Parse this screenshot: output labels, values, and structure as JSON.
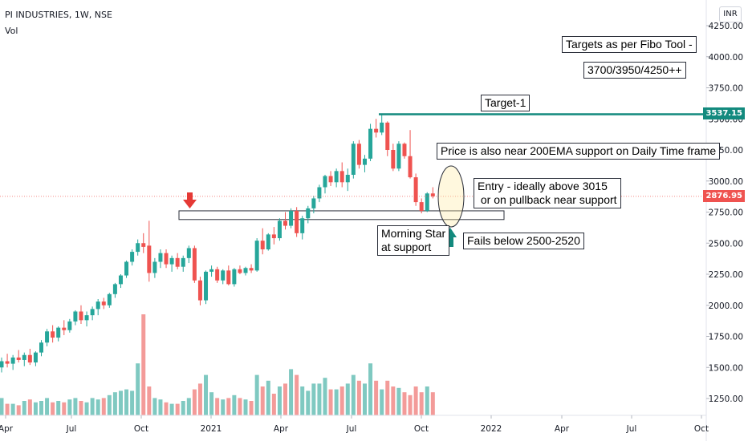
{
  "header": {
    "symbol": "PI INDUSTRIES, 1W, NSE",
    "volume_label": "Vol",
    "currency": "INR"
  },
  "colors": {
    "up": "#26a69a",
    "down": "#ef5350",
    "vol_up": "#7fc9c1",
    "vol_down": "#f39b99",
    "target_line": "#138a7e",
    "price_tag": "#ef5350",
    "arrow_down": "#e53935",
    "arrow_up": "#138a7e"
  },
  "annotations": {
    "targets_fibo": "Targets as per Fibo Tool -",
    "targets_values": "3700/3950/4250++",
    "target_1": "Target-1",
    "ema_note": "Price is also near 200EMA support on Daily Time frame",
    "entry_line1": "Entry - ideally above 3015",
    "entry_line2": " or on pullback near support",
    "morning_star_line1": "Morning Star",
    "morning_star_line2": "at support",
    "fails_below": "Fails below 2500-2520"
  },
  "price_tags": {
    "target": "3537.15",
    "last": "2876.95"
  },
  "chart_data": {
    "type": "candlestick",
    "title": "PI INDUSTRIES, 1W, NSE",
    "ylim": [
      1100,
      4350
    ],
    "y_ticks": [
      "1250.00",
      "1500.00",
      "1750.00",
      "2000.00",
      "2250.00",
      "2500.00",
      "2750.00",
      "3000.00",
      "3250.00",
      "3500.00",
      "3750.00",
      "4000.00",
      "4250.00"
    ],
    "x_ticks": [
      "Apr",
      "Jul",
      "Oct",
      "2021",
      "Apr",
      "Jul",
      "Oct",
      "2022",
      "Apr",
      "Jul",
      "Oct"
    ],
    "target_level": 3537.15,
    "last_price": 2876.95,
    "support_zone": [
      2690,
      2760
    ],
    "candles": [
      {
        "o": 1500,
        "h": 1580,
        "l": 1460,
        "c": 1550
      },
      {
        "o": 1550,
        "h": 1610,
        "l": 1500,
        "c": 1530
      },
      {
        "o": 1530,
        "h": 1600,
        "l": 1480,
        "c": 1580
      },
      {
        "o": 1580,
        "h": 1640,
        "l": 1540,
        "c": 1560
      },
      {
        "o": 1560,
        "h": 1620,
        "l": 1510,
        "c": 1600
      },
      {
        "o": 1600,
        "h": 1650,
        "l": 1520,
        "c": 1540
      },
      {
        "o": 1540,
        "h": 1630,
        "l": 1510,
        "c": 1620
      },
      {
        "o": 1620,
        "h": 1720,
        "l": 1590,
        "c": 1700
      },
      {
        "o": 1700,
        "h": 1810,
        "l": 1670,
        "c": 1790
      },
      {
        "o": 1790,
        "h": 1840,
        "l": 1700,
        "c": 1740
      },
      {
        "o": 1740,
        "h": 1830,
        "l": 1710,
        "c": 1820
      },
      {
        "o": 1820,
        "h": 1880,
        "l": 1760,
        "c": 1800
      },
      {
        "o": 1800,
        "h": 1890,
        "l": 1780,
        "c": 1870
      },
      {
        "o": 1870,
        "h": 1960,
        "l": 1840,
        "c": 1950
      },
      {
        "o": 1950,
        "h": 2000,
        "l": 1850,
        "c": 1880
      },
      {
        "o": 1880,
        "h": 1950,
        "l": 1830,
        "c": 1920
      },
      {
        "o": 1920,
        "h": 1990,
        "l": 1880,
        "c": 1970
      },
      {
        "o": 1970,
        "h": 2050,
        "l": 1920,
        "c": 2030
      },
      {
        "o": 2030,
        "h": 2060,
        "l": 1970,
        "c": 2000
      },
      {
        "o": 2000,
        "h": 2100,
        "l": 1980,
        "c": 2090
      },
      {
        "o": 2090,
        "h": 2180,
        "l": 2060,
        "c": 2170
      },
      {
        "o": 2170,
        "h": 2250,
        "l": 2140,
        "c": 2240
      },
      {
        "o": 2240,
        "h": 2360,
        "l": 2220,
        "c": 2350
      },
      {
        "o": 2350,
        "h": 2450,
        "l": 2320,
        "c": 2430
      },
      {
        "o": 2430,
        "h": 2530,
        "l": 2400,
        "c": 2500
      },
      {
        "o": 2500,
        "h": 2580,
        "l": 2420,
        "c": 2470
      },
      {
        "o": 2480,
        "h": 2680,
        "l": 2190,
        "c": 2260
      },
      {
        "o": 2260,
        "h": 2380,
        "l": 2220,
        "c": 2350
      },
      {
        "o": 2350,
        "h": 2450,
        "l": 2300,
        "c": 2420
      },
      {
        "o": 2420,
        "h": 2450,
        "l": 2300,
        "c": 2330
      },
      {
        "o": 2330,
        "h": 2400,
        "l": 2270,
        "c": 2380
      },
      {
        "o": 2380,
        "h": 2420,
        "l": 2290,
        "c": 2310
      },
      {
        "o": 2310,
        "h": 2400,
        "l": 2270,
        "c": 2380
      },
      {
        "o": 2380,
        "h": 2480,
        "l": 2340,
        "c": 2460
      },
      {
        "o": 2460,
        "h": 2480,
        "l": 2180,
        "c": 2200
      },
      {
        "o": 2200,
        "h": 2230,
        "l": 2000,
        "c": 2040
      },
      {
        "o": 2040,
        "h": 2280,
        "l": 2010,
        "c": 2270
      },
      {
        "o": 2270,
        "h": 2320,
        "l": 2230,
        "c": 2290
      },
      {
        "o": 2290,
        "h": 2310,
        "l": 2180,
        "c": 2200
      },
      {
        "o": 2200,
        "h": 2290,
        "l": 2170,
        "c": 2280
      },
      {
        "o": 2280,
        "h": 2320,
        "l": 2160,
        "c": 2170
      },
      {
        "o": 2170,
        "h": 2300,
        "l": 2150,
        "c": 2290
      },
      {
        "o": 2290,
        "h": 2320,
        "l": 2250,
        "c": 2260
      },
      {
        "o": 2260,
        "h": 2310,
        "l": 2240,
        "c": 2300
      },
      {
        "o": 2300,
        "h": 2330,
        "l": 2260,
        "c": 2280
      },
      {
        "o": 2280,
        "h": 2540,
        "l": 2270,
        "c": 2520
      },
      {
        "o": 2520,
        "h": 2620,
        "l": 2410,
        "c": 2450
      },
      {
        "o": 2450,
        "h": 2580,
        "l": 2440,
        "c": 2570
      },
      {
        "o": 2570,
        "h": 2630,
        "l": 2490,
        "c": 2540
      },
      {
        "o": 2540,
        "h": 2700,
        "l": 2520,
        "c": 2680
      },
      {
        "o": 2680,
        "h": 2750,
        "l": 2610,
        "c": 2640
      },
      {
        "o": 2640,
        "h": 2780,
        "l": 2620,
        "c": 2760
      },
      {
        "o": 2760,
        "h": 2790,
        "l": 2550,
        "c": 2580
      },
      {
        "o": 2580,
        "h": 2720,
        "l": 2530,
        "c": 2700
      },
      {
        "o": 2700,
        "h": 2800,
        "l": 2660,
        "c": 2780
      },
      {
        "o": 2780,
        "h": 2880,
        "l": 2740,
        "c": 2860
      },
      {
        "o": 2860,
        "h": 2970,
        "l": 2830,
        "c": 2950
      },
      {
        "o": 2950,
        "h": 3050,
        "l": 2900,
        "c": 3040
      },
      {
        "o": 3040,
        "h": 3080,
        "l": 2960,
        "c": 2990
      },
      {
        "o": 2990,
        "h": 3100,
        "l": 2950,
        "c": 3080
      },
      {
        "o": 3080,
        "h": 3150,
        "l": 2950,
        "c": 2990
      },
      {
        "o": 2990,
        "h": 3100,
        "l": 2920,
        "c": 3050
      },
      {
        "o": 3050,
        "h": 3320,
        "l": 3020,
        "c": 3300
      },
      {
        "o": 3300,
        "h": 3330,
        "l": 3100,
        "c": 3130
      },
      {
        "o": 3130,
        "h": 3210,
        "l": 3070,
        "c": 3180
      },
      {
        "o": 3180,
        "h": 3460,
        "l": 3160,
        "c": 3420
      },
      {
        "o": 3420,
        "h": 3500,
        "l": 3350,
        "c": 3390
      },
      {
        "o": 3390,
        "h": 3540,
        "l": 3370,
        "c": 3470
      },
      {
        "o": 3470,
        "h": 3480,
        "l": 3200,
        "c": 3250
      },
      {
        "o": 3250,
        "h": 3300,
        "l": 3080,
        "c": 3100
      },
      {
        "o": 3100,
        "h": 3320,
        "l": 3080,
        "c": 3300
      },
      {
        "o": 3300,
        "h": 3310,
        "l": 3180,
        "c": 3200
      },
      {
        "o": 3200,
        "h": 3410,
        "l": 3020,
        "c": 3030
      },
      {
        "o": 3030,
        "h": 3060,
        "l": 2800,
        "c": 2830
      },
      {
        "o": 2830,
        "h": 2860,
        "l": 2740,
        "c": 2760
      },
      {
        "o": 2760,
        "h": 2910,
        "l": 2750,
        "c": 2900
      },
      {
        "o": 2900,
        "h": 2950,
        "l": 2860,
        "c": 2877
      }
    ],
    "volume": [
      60,
      40,
      40,
      35,
      50,
      55,
      45,
      50,
      60,
      45,
      50,
      45,
      55,
      60,
      50,
      45,
      60,
      55,
      60,
      70,
      80,
      85,
      90,
      85,
      180,
      350,
      100,
      60,
      55,
      45,
      40,
      40,
      50,
      60,
      90,
      110,
      140,
      80,
      60,
      55,
      60,
      70,
      60,
      55,
      50,
      140,
      100,
      120,
      75,
      100,
      110,
      160,
      140,
      100,
      85,
      110,
      110,
      130,
      90,
      90,
      100,
      110,
      140,
      120,
      110,
      180,
      120,
      90,
      120,
      100,
      95,
      80,
      70,
      100,
      80,
      100,
      80
    ]
  }
}
